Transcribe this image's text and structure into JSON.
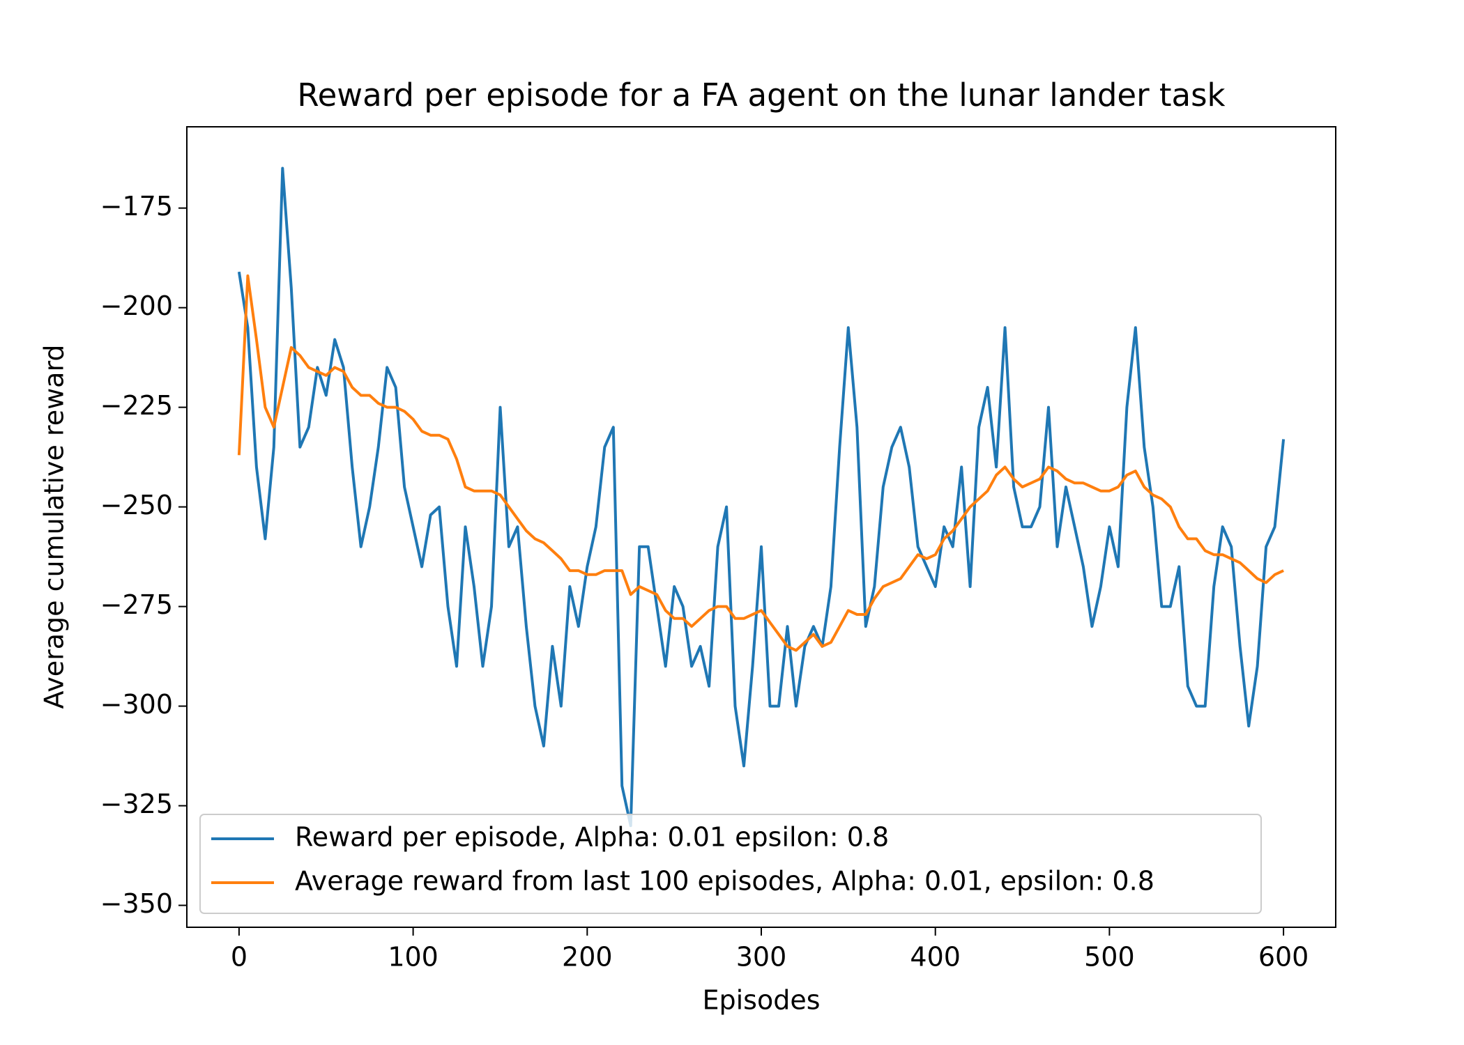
{
  "chart_data": {
    "type": "line",
    "title": "Reward per episode for a FA agent on the lunar lander task",
    "xlabel": "Episodes",
    "ylabel": "Average cumulative reward",
    "x": [
      0,
      5,
      10,
      15,
      20,
      25,
      30,
      35,
      40,
      45,
      50,
      55,
      60,
      65,
      70,
      75,
      80,
      85,
      90,
      95,
      100,
      105,
      110,
      115,
      120,
      125,
      130,
      135,
      140,
      145,
      150,
      155,
      160,
      165,
      170,
      175,
      180,
      185,
      190,
      195,
      200,
      205,
      210,
      215,
      220,
      225,
      230,
      235,
      240,
      245,
      250,
      255,
      260,
      265,
      270,
      275,
      280,
      285,
      290,
      295,
      300,
      305,
      310,
      315,
      320,
      325,
      330,
      335,
      340,
      345,
      350,
      355,
      360,
      365,
      370,
      375,
      380,
      385,
      390,
      395,
      400,
      405,
      410,
      415,
      420,
      425,
      430,
      435,
      440,
      445,
      450,
      455,
      460,
      465,
      470,
      475,
      480,
      485,
      490,
      495,
      500,
      505,
      510,
      515,
      520,
      525,
      530,
      535,
      540,
      545,
      550,
      555,
      560,
      565,
      570,
      575,
      580,
      585,
      590,
      595,
      600
    ],
    "series": [
      {
        "name": "Reward per episode, Alpha: 0.01 epsilon: 0.8",
        "color": "#1f77b4",
        "values": [
          -191,
          -205,
          -240,
          -258,
          -235,
          -165,
          -195,
          -235,
          -230,
          -215,
          -222,
          -208,
          -215,
          -240,
          -260,
          -250,
          -235,
          -215,
          -220,
          -245,
          -255,
          -265,
          -252,
          -250,
          -275,
          -290,
          -255,
          -270,
          -290,
          -275,
          -225,
          -260,
          -255,
          -280,
          -300,
          -310,
          -285,
          -300,
          -270,
          -280,
          -265,
          -255,
          -235,
          -230,
          -320,
          -330,
          -260,
          -260,
          -275,
          -290,
          -270,
          -275,
          -290,
          -285,
          -295,
          -260,
          -250,
          -300,
          -315,
          -290,
          -260,
          -300,
          -300,
          -280,
          -300,
          -285,
          -280,
          -285,
          -270,
          -235,
          -205,
          -230,
          -280,
          -270,
          -245,
          -235,
          -230,
          -240,
          -260,
          -265,
          -270,
          -255,
          -260,
          -240,
          -270,
          -230,
          -220,
          -240,
          -205,
          -245,
          -255,
          -255,
          -250,
          -225,
          -260,
          -245,
          -255,
          -265,
          -280,
          -270,
          -255,
          -265,
          -225,
          -205,
          -235,
          -250,
          -275,
          -275,
          -265,
          -295,
          -300,
          -300,
          -270,
          -255,
          -260,
          -285,
          -305,
          -290,
          -260,
          -255,
          -233
        ]
      },
      {
        "name": "Average reward from last 100 episodes, Alpha: 0.01, epsilon: 0.8",
        "color": "#ff7f0e",
        "values": [
          -237,
          -192,
          -208,
          -225,
          -230,
          -220,
          -210,
          -212,
          -215,
          -216,
          -217,
          -215,
          -216,
          -220,
          -222,
          -222,
          -224,
          -225,
          -225,
          -226,
          -228,
          -231,
          -232,
          -232,
          -233,
          -238,
          -245,
          -246,
          -246,
          -246,
          -247,
          -250,
          -253,
          -256,
          -258,
          -259,
          -261,
          -263,
          -266,
          -266,
          -267,
          -267,
          -266,
          -266,
          -266,
          -272,
          -270,
          -271,
          -272,
          -276,
          -278,
          -278,
          -280,
          -278,
          -276,
          -275,
          -275,
          -278,
          -278,
          -277,
          -276,
          -279,
          -282,
          -285,
          -286,
          -284,
          -282,
          -285,
          -284,
          -280,
          -276,
          -277,
          -277,
          -273,
          -270,
          -269,
          -268,
          -265,
          -262,
          -263,
          -262,
          -258,
          -256,
          -253,
          -250,
          -248,
          -246,
          -242,
          -240,
          -243,
          -245,
          -244,
          -243,
          -240,
          -241,
          -243,
          -244,
          -244,
          -245,
          -246,
          -246,
          -245,
          -242,
          -241,
          -245,
          -247,
          -248,
          -250,
          -255,
          -258,
          -258,
          -261,
          -262,
          -262,
          -263,
          -264,
          -266,
          -268,
          -269,
          -267,
          -266
        ]
      }
    ],
    "xlim": [
      -30,
      630
    ],
    "ylim": [
      -355.5,
      -154.6
    ],
    "xticks": [
      0,
      100,
      200,
      300,
      400,
      500,
      600
    ],
    "yticks": [
      {
        "value": -350,
        "label": "−350"
      },
      {
        "value": -325,
        "label": "−325"
      },
      {
        "value": -300,
        "label": "−300"
      },
      {
        "value": -275,
        "label": "−275"
      },
      {
        "value": -250,
        "label": "−250"
      },
      {
        "value": -225,
        "label": "−225"
      },
      {
        "value": -200,
        "label": "−200"
      },
      {
        "value": -175,
        "label": "−175"
      }
    ],
    "legend": "lower left"
  }
}
